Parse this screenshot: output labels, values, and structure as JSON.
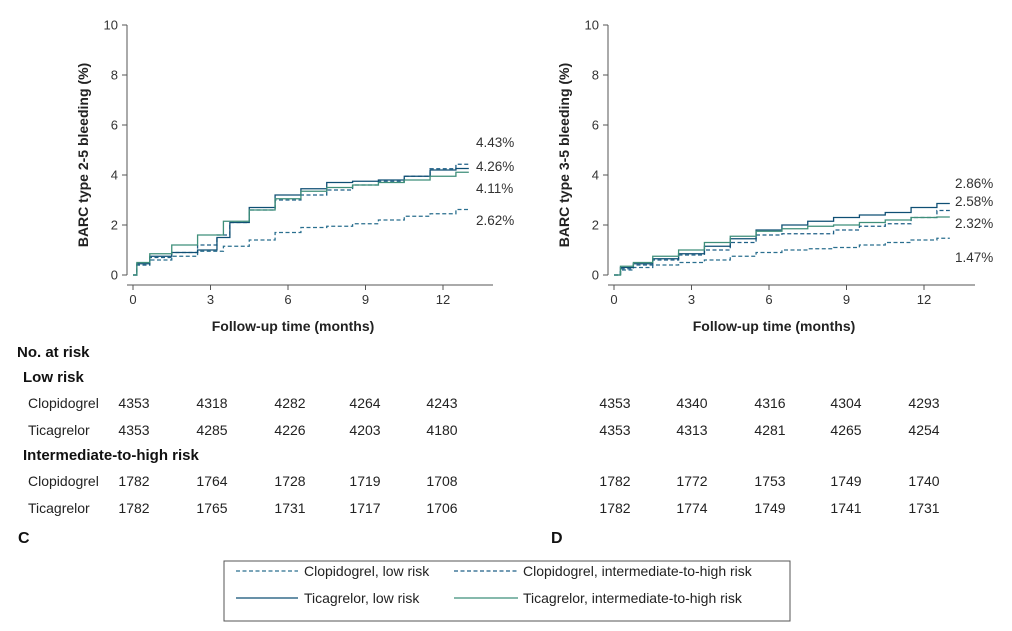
{
  "chart_data": [
    {
      "type": "line",
      "panel": "C",
      "ylabel": "BARC type 2-5 bleeding (%)",
      "xlabel": "Follow-up time (months)",
      "xlim": [
        0,
        13.5
      ],
      "ylim": [
        0,
        10
      ],
      "xticks": [
        "0",
        "3",
        "6",
        "9",
        "12"
      ],
      "yticks": [
        "0",
        "2",
        "4",
        "6",
        "8",
        "10"
      ],
      "series": [
        {
          "name": "Clopidogrel, low risk",
          "color": "#2a6f8f",
          "dash": true,
          "x": [
            0,
            0.3,
            1,
            2,
            3,
            4,
            5,
            6,
            7,
            8,
            9,
            10,
            11,
            12,
            13
          ],
          "y": [
            0,
            0.4,
            0.6,
            0.75,
            0.95,
            1.15,
            1.4,
            1.7,
            1.9,
            1.95,
            2.05,
            2.2,
            2.35,
            2.45,
            2.62
          ]
        },
        {
          "name": "Clopidogrel, intermediate-to-high risk",
          "color": "#1d5f86",
          "dash": true,
          "x": [
            0,
            0.3,
            1,
            2,
            3,
            3.5,
            4,
            5,
            6,
            7,
            8,
            9,
            10,
            11,
            12,
            13
          ],
          "y": [
            0,
            0.4,
            0.7,
            0.9,
            1.2,
            1.6,
            2.1,
            2.6,
            3.0,
            3.2,
            3.4,
            3.6,
            3.75,
            3.95,
            4.25,
            4.43
          ]
        },
        {
          "name": "Ticagrelor, low risk",
          "color": "#0f4f74",
          "dash": false,
          "x": [
            0,
            0.3,
            1,
            2,
            3,
            3.5,
            4,
            5,
            6,
            7,
            8,
            9,
            10,
            11,
            12,
            13
          ],
          "y": [
            0,
            0.45,
            0.75,
            0.9,
            1.0,
            1.5,
            2.1,
            2.7,
            3.2,
            3.45,
            3.7,
            3.75,
            3.8,
            3.95,
            4.2,
            4.26
          ]
        },
        {
          "name": "Ticagrelor, intermediate-to-high risk",
          "color": "#3f8f7a",
          "dash": false,
          "x": [
            0,
            0.3,
            1,
            2,
            3,
            4,
            5,
            6,
            7,
            8,
            9,
            10,
            11,
            12,
            13
          ],
          "y": [
            0,
            0.5,
            0.85,
            1.2,
            1.6,
            2.15,
            2.6,
            3.05,
            3.35,
            3.5,
            3.6,
            3.7,
            3.8,
            3.95,
            4.11
          ]
        }
      ],
      "end_labels": [
        "4.43%",
        "4.26%",
        "4.11%",
        "2.62%"
      ]
    },
    {
      "type": "line",
      "panel": "D",
      "ylabel": "BARC type 3-5 bleeding (%)",
      "xlabel": "Follow-up time (months)",
      "xlim": [
        0,
        13.5
      ],
      "ylim": [
        0,
        10
      ],
      "xticks": [
        "0",
        "3",
        "6",
        "9",
        "12"
      ],
      "yticks": [
        "0",
        "2",
        "4",
        "6",
        "8",
        "10"
      ],
      "series": [
        {
          "name": "Clopidogrel, low risk",
          "color": "#2a6f8f",
          "dash": true,
          "x": [
            0,
            0.5,
            1,
            2,
            3,
            4,
            5,
            6,
            7,
            8,
            9,
            10,
            11,
            12,
            13
          ],
          "y": [
            0,
            0.2,
            0.3,
            0.4,
            0.5,
            0.6,
            0.75,
            0.9,
            1.0,
            1.05,
            1.1,
            1.2,
            1.3,
            1.4,
            1.47
          ]
        },
        {
          "name": "Clopidogrel, intermediate-to-high risk",
          "color": "#1d5f86",
          "dash": true,
          "x": [
            0,
            0.5,
            1,
            2,
            3,
            4,
            5,
            6,
            7,
            8,
            9,
            10,
            11,
            12,
            13
          ],
          "y": [
            0,
            0.25,
            0.4,
            0.6,
            0.8,
            1.0,
            1.3,
            1.6,
            1.65,
            1.65,
            1.8,
            1.95,
            2.05,
            2.3,
            2.58
          ]
        },
        {
          "name": "Ticagrelor, low risk",
          "color": "#0f4f74",
          "dash": false,
          "x": [
            0,
            0.5,
            1,
            2,
            3,
            4,
            5,
            6,
            7,
            8,
            9,
            10,
            11,
            12,
            13
          ],
          "y": [
            0,
            0.3,
            0.45,
            0.65,
            0.85,
            1.15,
            1.45,
            1.8,
            2.0,
            2.15,
            2.3,
            2.4,
            2.5,
            2.7,
            2.86
          ]
        },
        {
          "name": "Ticagrelor, intermediate-to-high risk",
          "color": "#3f8f7a",
          "dash": false,
          "x": [
            0,
            0.5,
            1,
            2,
            3,
            4,
            5,
            6,
            7,
            8,
            9,
            10,
            11,
            12,
            13
          ],
          "y": [
            0,
            0.35,
            0.5,
            0.75,
            1.0,
            1.3,
            1.55,
            1.75,
            1.85,
            1.95,
            2.0,
            2.1,
            2.2,
            2.3,
            2.32
          ]
        }
      ],
      "end_labels": [
        "2.86%",
        "2.58%",
        "2.32%",
        "1.47%"
      ]
    }
  ],
  "risk_table": {
    "title": "No. at risk",
    "groups": [
      {
        "label": "Low risk",
        "rows": [
          {
            "label": "Clopidogrel",
            "C": [
              "4353",
              "4318",
              "4282",
              "4264",
              "4243"
            ],
            "D": [
              "4353",
              "4340",
              "4316",
              "4304",
              "4293"
            ]
          },
          {
            "label": "Ticagrelor",
            "C": [
              "4353",
              "4285",
              "4226",
              "4203",
              "4180"
            ],
            "D": [
              "4353",
              "4313",
              "4281",
              "4265",
              "4254"
            ]
          }
        ]
      },
      {
        "label": "Intermediate-to-high risk",
        "rows": [
          {
            "label": "Clopidogrel",
            "C": [
              "1782",
              "1764",
              "1728",
              "1719",
              "1708"
            ],
            "D": [
              "1782",
              "1772",
              "1753",
              "1749",
              "1740"
            ]
          },
          {
            "label": "Ticagrelor",
            "C": [
              "1782",
              "1765",
              "1731",
              "1717",
              "1706"
            ],
            "D": [
              "1782",
              "1774",
              "1749",
              "1741",
              "1731"
            ]
          }
        ]
      }
    ]
  },
  "panel_labels": [
    "C",
    "D"
  ],
  "legend": [
    {
      "label": "Clopidogrel, low risk",
      "color": "#2a6f8f",
      "dash": true
    },
    {
      "label": "Clopidogrel, intermediate-to-high risk",
      "color": "#1d5f86",
      "dash": true
    },
    {
      "label": "Ticagrelor, low risk",
      "color": "#0f4f74",
      "dash": false
    },
    {
      "label": "Ticagrelor, intermediate-to-high risk",
      "color": "#3f8f7a",
      "dash": false
    }
  ]
}
